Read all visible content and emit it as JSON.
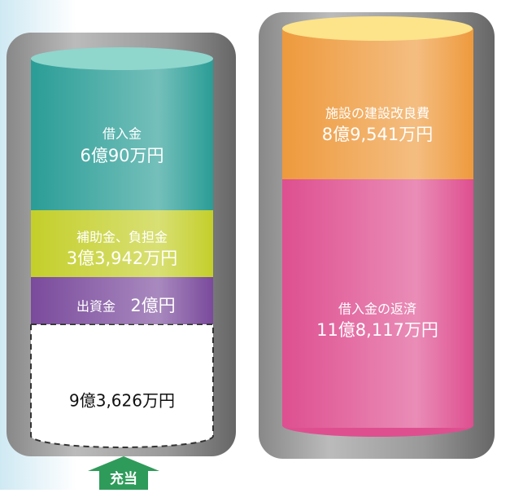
{
  "left": {
    "segments": [
      {
        "label": "借入金",
        "amount": "6億90万円"
      },
      {
        "label": "補助金、負担金",
        "amount": "3億3,942万円"
      },
      {
        "label": "出資金",
        "amount": "2億円"
      },
      {
        "amount": "9億3,626万円"
      }
    ],
    "arrow": "充当"
  },
  "right": {
    "segments": [
      {
        "label": "施設の建設改良費",
        "amount": "8億9,541万円"
      },
      {
        "label": "借入金の返済",
        "amount": "11億8,117万円"
      }
    ]
  }
}
